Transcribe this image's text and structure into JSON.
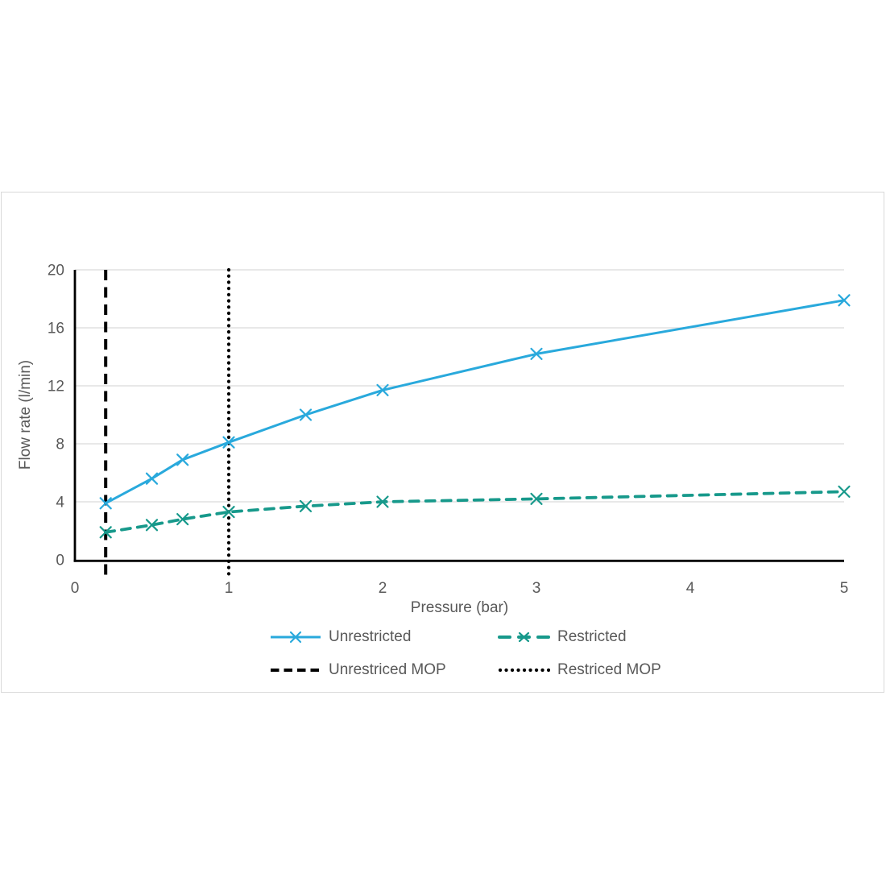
{
  "chart_data": {
    "type": "line",
    "title": "",
    "xlabel": "Pressure (bar)",
    "ylabel": "Flow rate (l/min)",
    "xlim": [
      0,
      5
    ],
    "ylim": [
      0,
      20
    ],
    "x_ticks": [
      0,
      1,
      2,
      3,
      4,
      5
    ],
    "y_ticks": [
      0,
      4,
      8,
      12,
      16,
      20
    ],
    "grid": "horizontal-only",
    "legend_position": "bottom",
    "series": [
      {
        "name": "Unrestricted",
        "marker": "x",
        "line_style": "solid",
        "color": "#29A9DC",
        "x": [
          0.2,
          0.5,
          0.7,
          1,
          1.5,
          2,
          3,
          5
        ],
        "values": [
          3.9,
          5.6,
          6.9,
          8.1,
          10.0,
          11.7,
          14.2,
          17.9
        ]
      },
      {
        "name": "Restricted",
        "marker": "x",
        "line_style": "dashed",
        "color": "#17998B",
        "x": [
          0.2,
          0.5,
          0.7,
          1,
          1.5,
          2,
          3,
          5
        ],
        "values": [
          1.9,
          2.4,
          2.8,
          3.3,
          3.7,
          4.0,
          4.2,
          4.7
        ]
      }
    ],
    "vlines": [
      {
        "name": "Unrestriced MOP",
        "x": 0.2,
        "line_style": "dashed",
        "color": "#000000"
      },
      {
        "name": "Restriced MOP",
        "x": 1.0,
        "line_style": "dotted",
        "color": "#000000"
      }
    ],
    "colors": {
      "axis_text": "#595959",
      "gridline": "#D9D9D9",
      "axis_line": "#000000",
      "chart_border": "#D9D9D9",
      "background": "#FFFFFF"
    }
  }
}
